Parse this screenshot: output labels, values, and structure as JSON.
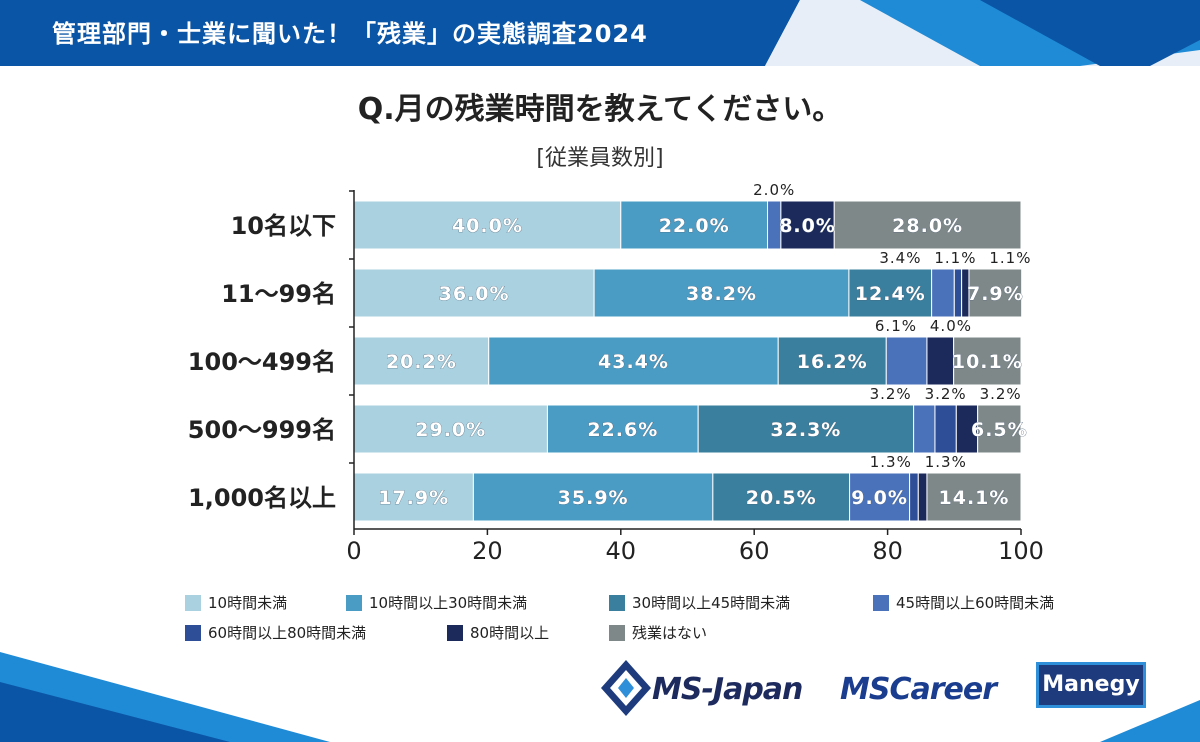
{
  "banner": {
    "title": "管理部門・士業に聞いた！「残業」の実態調査2024"
  },
  "question": "Q.月の残業時間を教えてください。",
  "subtitle": "[従業員数別]",
  "colors": {
    "banner_dark": "#0a55a6",
    "banner_light": "#1f8bd6",
    "series": [
      "#a9d1df",
      "#4a9cc4",
      "#3a7f9d",
      "#4a72bb",
      "#2e4e97",
      "#1b2a5b",
      "#7f8889"
    ]
  },
  "chart_data": {
    "type": "bar",
    "orientation": "horizontal",
    "stacked": true,
    "categories": [
      "10名以下",
      "11〜99名",
      "100〜499名",
      "500〜999名",
      "1,000名以上"
    ],
    "series": [
      {
        "name": "10時間未満",
        "values": [
          40.0,
          36.0,
          20.2,
          29.0,
          17.9
        ]
      },
      {
        "name": "10時間以上30時間未満",
        "values": [
          22.0,
          38.2,
          43.4,
          22.6,
          35.9
        ]
      },
      {
        "name": "30時間以上45時間未満",
        "values": [
          0,
          12.4,
          16.2,
          32.3,
          20.5
        ]
      },
      {
        "name": "45時間以上60時間未満",
        "values": [
          2.0,
          3.4,
          6.1,
          3.2,
          9.0
        ]
      },
      {
        "name": "60時間以上80時間未満",
        "values": [
          0,
          1.1,
          0,
          3.2,
          1.3
        ]
      },
      {
        "name": "80時間以上",
        "values": [
          8.0,
          1.1,
          4.0,
          3.2,
          1.3
        ]
      },
      {
        "name": "残業はない",
        "values": [
          28.0,
          7.9,
          10.1,
          6.5,
          14.1
        ]
      }
    ],
    "data_labels": [
      [
        "40.0%",
        "22.0%",
        "",
        "2.0%",
        "",
        "8.0%",
        "28.0%"
      ],
      [
        "36.0%",
        "38.2%",
        "12.4%",
        "3.4%",
        "1.1%",
        "1.1%",
        "7.9%"
      ],
      [
        "20.2%",
        "43.4%",
        "16.2%",
        "6.1%",
        "",
        "4.0%",
        "10.1%"
      ],
      [
        "29.0%",
        "22.6%",
        "32.3%",
        "3.2%",
        "3.2%",
        "3.2%",
        "6.5%"
      ],
      [
        "17.9%",
        "35.9%",
        "20.5%",
        "9.0%",
        "1.3%",
        "1.3%",
        "14.1%"
      ]
    ],
    "label_outside": [
      [
        false,
        false,
        false,
        true,
        false,
        false,
        false
      ],
      [
        false,
        false,
        false,
        true,
        true,
        true,
        false
      ],
      [
        false,
        false,
        false,
        true,
        false,
        true,
        false
      ],
      [
        false,
        false,
        false,
        true,
        true,
        true,
        false
      ],
      [
        false,
        false,
        false,
        false,
        true,
        true,
        false
      ]
    ],
    "xlim": [
      0,
      100
    ],
    "xticks": [
      0,
      20,
      40,
      60,
      80,
      100
    ],
    "xtick_labels": [
      "0",
      "20",
      "40",
      "60",
      "80",
      "100"
    ],
    "grid": false,
    "legend_position": "bottom"
  },
  "logos": {
    "ms_japan": "MS-Japan",
    "ms_career": "MSCareer",
    "manegy": "Manegy"
  }
}
